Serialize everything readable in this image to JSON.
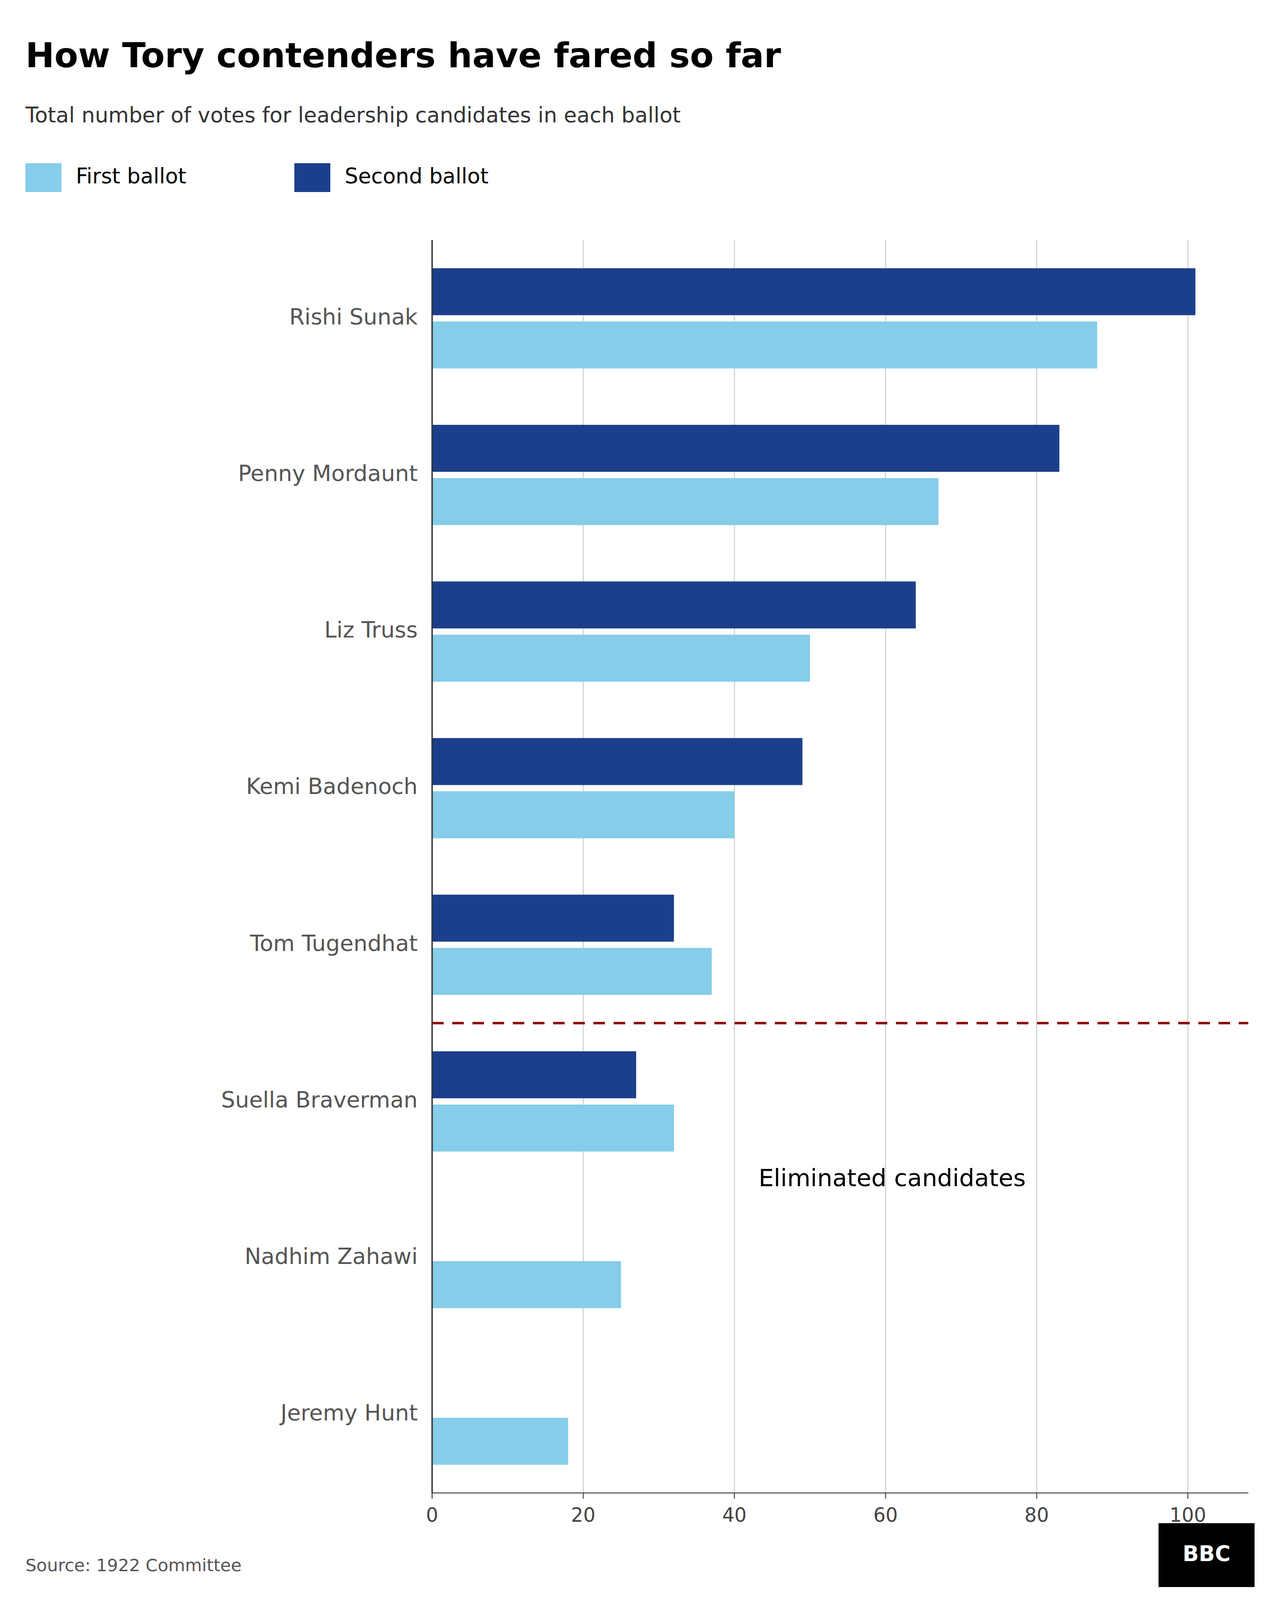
{
  "chart_data": {
    "type": "bar",
    "orientation": "horizontal",
    "title": "How Tory contenders have fared so far",
    "subtitle": "Total number of votes for leadership candidates in each ballot",
    "categories": [
      "Rishi Sunak",
      "Penny Mordaunt",
      "Liz Truss",
      "Kemi Badenoch",
      "Tom Tugendhat",
      "Suella Braverman",
      "Nadhim Zahawi",
      "Jeremy Hunt"
    ],
    "series": [
      {
        "name": "First ballot",
        "color": "#85CDE8",
        "values": [
          88,
          67,
          50,
          40,
          37,
          32,
          25,
          18
        ]
      },
      {
        "name": "Second ballot",
        "color": "#1B3F8B",
        "values": [
          101,
          83,
          64,
          49,
          32,
          27,
          null,
          null
        ]
      }
    ],
    "xlim": [
      0,
      108
    ],
    "xticks": [
      0,
      20,
      40,
      60,
      80,
      100
    ],
    "grid": true,
    "legend": "top-left",
    "annotations": [
      {
        "text": "Eliminated candidates",
        "line_style": "dashed",
        "color": "#8B0000"
      }
    ],
    "source": "Source: 1922 Committee",
    "logo": "BBC"
  }
}
